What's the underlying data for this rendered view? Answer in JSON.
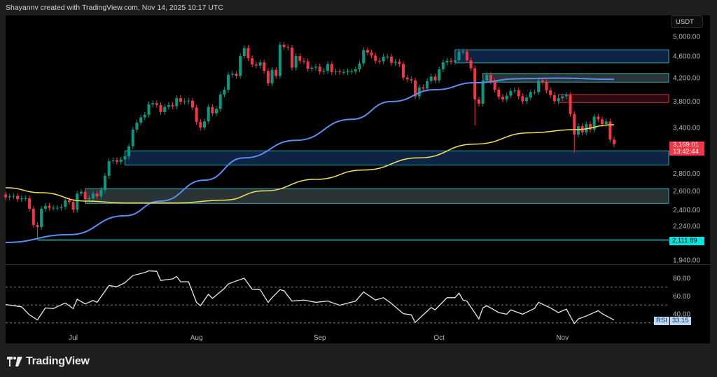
{
  "header": {
    "credit": "Shayannv created with TradingView.com, Nov 14, 2025 10:17 UTC"
  },
  "branding": {
    "logo_text": "TradingView"
  },
  "price_axis": {
    "currency_button": "USDT",
    "ticks": [
      "5,000.00",
      "4,600.00",
      "4,200.00",
      "3,800.00",
      "3,400.00",
      "2,800.00",
      "2,600.00",
      "2,400.00",
      "2,240.00",
      "1,940.00"
    ],
    "tick_values": [
      5000,
      4600,
      4200,
      3800,
      3400,
      2800,
      2600,
      2400,
      2240,
      1940
    ],
    "scale": "log",
    "last_price_label": "3,169.01",
    "countdown_label": "13:42:44",
    "level_label": "2,111.89"
  },
  "rsi_pane": {
    "label": "RSI",
    "value_label": "33.15",
    "ticks": [
      "80.00",
      "60.00",
      "40.00"
    ],
    "tick_values": [
      80,
      60,
      40
    ],
    "bands": [
      70,
      50,
      30
    ]
  },
  "time_axis": {
    "labels": [
      "Jul",
      "Aug",
      "Sep",
      "Oct",
      "Nov"
    ],
    "label_day_index": [
      17,
      48,
      79,
      109,
      140
    ]
  },
  "colors": {
    "up": "#089981",
    "down": "#f23645",
    "ma_fast": "#5b8def",
    "ma_slow": "#f2e35a",
    "rsi": "#e6e8ee",
    "level": "#2ec4c0",
    "zone_blue": "#0f2444",
    "zone_gray": "#2a3336",
    "zone_red": "#2b0b10",
    "zone_border": "#2aa8a4",
    "zone_red_border": "#c9303f"
  },
  "chart_data": {
    "type": "candlestick",
    "interval": "1D",
    "x_range": [
      "Jun 14",
      "Nov 14"
    ],
    "y_scale": "log",
    "ylim": [
      1870,
      5200
    ],
    "grid": false,
    "close": [
      2530,
      2540,
      2545,
      2510,
      2520,
      2520,
      2410,
      2250,
      2230,
      2410,
      2440,
      2420,
      2420,
      2420,
      2430,
      2500,
      2480,
      2400,
      2570,
      2590,
      2510,
      2520,
      2570,
      2540,
      2610,
      2770,
      2950,
      2960,
      2940,
      2970,
      3010,
      3140,
      3370,
      3470,
      3550,
      3590,
      3750,
      3770,
      3740,
      3630,
      3710,
      3740,
      3720,
      3850,
      3790,
      3800,
      3810,
      3700,
      3480,
      3400,
      3490,
      3710,
      3610,
      3680,
      3910,
      3990,
      4250,
      4270,
      4230,
      4600,
      4760,
      4560,
      4440,
      4420,
      4480,
      4320,
      4100,
      4340,
      4230,
      4830,
      4780,
      4770,
      4380,
      4600,
      4510,
      4500,
      4360,
      4380,
      4400,
      4310,
      4320,
      4450,
      4300,
      4310,
      4300,
      4300,
      4310,
      4310,
      4350,
      4460,
      4720,
      4670,
      4610,
      4510,
      4500,
      4590,
      4590,
      4470,
      4490,
      4450,
      4200,
      4170,
      4150,
      3880,
      4030,
      4010,
      4140,
      4220,
      4150,
      4350,
      4480,
      4510,
      4490,
      4520,
      4690,
      4690,
      4520,
      4370,
      3830,
      3760,
      4150,
      4250,
      4130,
      3990,
      3870,
      3830,
      3890,
      3970,
      3980,
      3880,
      3800,
      3860,
      3950,
      3950,
      4150,
      4120,
      3980,
      3900,
      3800,
      3850,
      3880,
      3900,
      3600,
      3300,
      3420,
      3330,
      3450,
      3370,
      3560,
      3520,
      3450,
      3490,
      3230,
      3169.01
    ],
    "first_open": 2560,
    "notable_wick_lows": [
      [
        8,
        2120
      ],
      [
        118,
        3430
      ],
      [
        143,
        3055
      ]
    ],
    "moving_averages": [
      {
        "points": [
          [
            0,
            2090
          ],
          [
            16,
            2160
          ],
          [
            30,
            2340
          ],
          [
            39,
            2490
          ],
          [
            50,
            2720
          ],
          [
            60,
            2990
          ],
          [
            73,
            3220
          ],
          [
            87,
            3520
          ],
          [
            97,
            3795
          ],
          [
            108,
            3990
          ],
          [
            118,
            4110
          ],
          [
            129,
            4180
          ],
          [
            139,
            4190
          ],
          [
            153,
            4170
          ]
        ]
      },
      {
        "points": [
          [
            0,
            2635
          ],
          [
            9,
            2580
          ],
          [
            20,
            2490
          ],
          [
            30,
            2470
          ],
          [
            43,
            2470
          ],
          [
            55,
            2500
          ],
          [
            65,
            2600
          ],
          [
            78,
            2730
          ],
          [
            90,
            2840
          ],
          [
            104,
            2990
          ],
          [
            118,
            3170
          ],
          [
            132,
            3325
          ],
          [
            143,
            3370
          ],
          [
            153,
            3440
          ]
        ]
      }
    ],
    "zones": [
      {
        "kind": "blue",
        "from_index": 113,
        "top": 4725,
        "bottom": 4470
      },
      {
        "kind": "gray",
        "from_index": 120,
        "top": 4275,
        "bottom": 4120
      },
      {
        "kind": "red",
        "from_index": 139,
        "top": 3910,
        "bottom": 3780
      },
      {
        "kind": "blue",
        "from_index": 30,
        "top": 3080,
        "bottom": 2900
      },
      {
        "kind": "gray",
        "from_index": 20,
        "top": 2625,
        "bottom": 2465
      }
    ],
    "level": {
      "value": 2111.89,
      "from_index": 8
    },
    "rsi": [
      [
        0,
        50.5
      ],
      [
        4,
        48
      ],
      [
        6,
        39
      ],
      [
        8,
        33.3
      ],
      [
        10,
        46.7
      ],
      [
        12,
        46
      ],
      [
        15,
        52.3
      ],
      [
        17,
        46
      ],
      [
        18,
        56.4
      ],
      [
        20,
        51.3
      ],
      [
        22,
        55
      ],
      [
        23,
        53
      ],
      [
        26,
        71.8
      ],
      [
        28,
        70.5
      ],
      [
        30,
        74.9
      ],
      [
        32,
        83
      ],
      [
        35,
        86.4
      ],
      [
        36,
        88.2
      ],
      [
        38,
        87.7
      ],
      [
        39,
        77.4
      ],
      [
        42,
        79.2
      ],
      [
        43,
        82
      ],
      [
        44,
        76
      ],
      [
        46,
        76
      ],
      [
        48,
        53
      ],
      [
        49,
        49.2
      ],
      [
        51,
        62
      ],
      [
        52,
        57.4
      ],
      [
        55,
        68.5
      ],
      [
        56,
        73.6
      ],
      [
        58,
        76.9
      ],
      [
        60,
        80
      ],
      [
        62,
        67.7
      ],
      [
        64,
        67.2
      ],
      [
        66,
        53
      ],
      [
        67,
        58.2
      ],
      [
        69,
        67.2
      ],
      [
        70,
        65.9
      ],
      [
        72,
        54.4
      ],
      [
        75,
        55.6
      ],
      [
        78,
        53
      ],
      [
        81,
        54.4
      ],
      [
        84,
        49.7
      ],
      [
        88,
        54.4
      ],
      [
        90,
        64.6
      ],
      [
        93,
        55.6
      ],
      [
        95,
        58.2
      ],
      [
        97,
        51.8
      ],
      [
        100,
        40.3
      ],
      [
        102,
        39
      ],
      [
        103,
        30.5
      ],
      [
        105,
        39
      ],
      [
        107,
        47.2
      ],
      [
        108,
        44.6
      ],
      [
        111,
        58.2
      ],
      [
        113,
        58.2
      ],
      [
        114,
        63.3
      ],
      [
        115,
        55.6
      ],
      [
        116,
        54.4
      ],
      [
        119,
        34.4
      ],
      [
        120,
        46.7
      ],
      [
        121,
        49.2
      ],
      [
        124,
        41.5
      ],
      [
        126,
        39.7
      ],
      [
        127,
        44.6
      ],
      [
        130,
        39.7
      ],
      [
        133,
        46.2
      ],
      [
        134,
        53
      ],
      [
        137,
        46.7
      ],
      [
        139,
        41.5
      ],
      [
        141,
        45.4
      ],
      [
        143,
        29.2
      ],
      [
        144,
        34.4
      ],
      [
        146,
        37.7
      ],
      [
        149,
        43.6
      ],
      [
        150,
        40.3
      ],
      [
        153,
        33.15
      ]
    ]
  }
}
